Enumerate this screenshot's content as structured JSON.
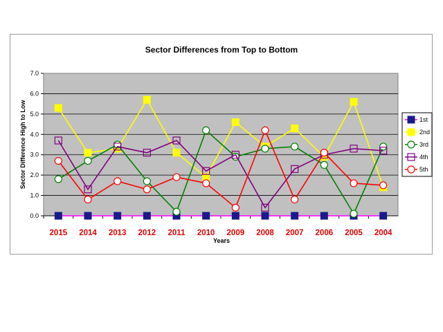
{
  "chart_data": {
    "type": "line",
    "title": "Sector Differences from Top to Bottom",
    "xlabel": "Years",
    "ylabel": "Sector Difference High to Low",
    "categories": [
      "2015",
      "2014",
      "2013",
      "2012",
      "2011",
      "2010",
      "2009",
      "2008",
      "2007",
      "2006",
      "2005",
      "2004"
    ],
    "ylim": [
      0,
      7
    ],
    "yticks": [
      "0.0",
      "1.0",
      "2.0",
      "3.0",
      "4.0",
      "5.0",
      "6.0",
      "7.0"
    ],
    "grid": true,
    "legend_position": "right",
    "series": [
      {
        "name": "1st",
        "color": "#ff00ff",
        "marker": "square-filled",
        "marker_color": "#1a1a8c",
        "values": [
          0,
          0,
          0,
          0,
          0,
          0,
          0,
          0,
          0,
          0,
          0,
          0
        ]
      },
      {
        "name": "2nd",
        "color": "#ffff00",
        "marker": "square-filled",
        "marker_color": "#ffff00",
        "values": [
          5.3,
          3.1,
          3.3,
          5.7,
          3.1,
          1.9,
          4.6,
          3.4,
          4.3,
          2.9,
          5.6,
          1.4
        ]
      },
      {
        "name": "3rd",
        "color": "#008000",
        "marker": "circle-open",
        "marker_color": "#008000",
        "values": [
          1.8,
          2.7,
          3.5,
          1.7,
          0.2,
          4.2,
          2.9,
          3.3,
          3.4,
          2.5,
          0.1,
          3.4
        ]
      },
      {
        "name": "4th",
        "color": "#800080",
        "marker": "square-open",
        "marker_color": "#800080",
        "values": [
          3.7,
          1.3,
          3.4,
          3.1,
          3.7,
          2.2,
          3.0,
          0.4,
          2.3,
          3.0,
          3.3,
          3.2
        ]
      },
      {
        "name": "5th",
        "color": "#ff0000",
        "marker": "circle-open",
        "marker_color": "#ff0000",
        "values": [
          2.7,
          0.8,
          1.7,
          1.3,
          1.9,
          1.6,
          0.4,
          4.2,
          0.8,
          3.1,
          1.6,
          1.5
        ]
      }
    ]
  }
}
